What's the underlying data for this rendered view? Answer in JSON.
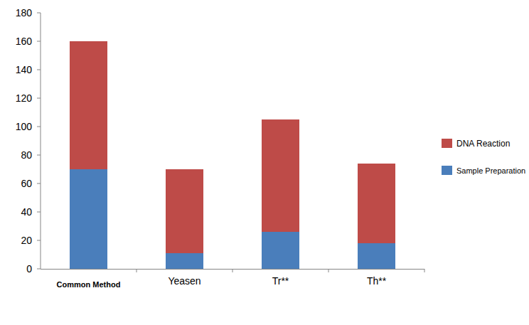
{
  "chart_data": {
    "type": "bar",
    "stacked": true,
    "categories": [
      "Common Method",
      "Yeasen",
      "Tr**",
      "Th**"
    ],
    "series": [
      {
        "name": "Sample Preparation",
        "color": "#4a7ebb",
        "values": [
          70,
          11,
          26,
          18
        ]
      },
      {
        "name": "DNA Reaction",
        "color": "#be4b48",
        "values": [
          90,
          59,
          79,
          56
        ]
      }
    ],
    "ylim": [
      0,
      180
    ],
    "yticks": [
      0,
      20,
      40,
      60,
      80,
      100,
      120,
      140,
      160,
      180
    ],
    "grid": false,
    "legend": "right"
  }
}
